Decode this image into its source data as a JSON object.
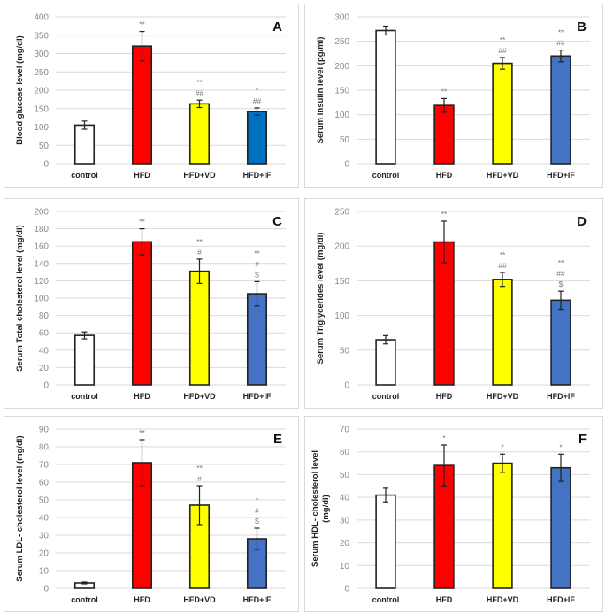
{
  "chart_data": [
    {
      "panel_label": "A",
      "type": "bar",
      "categories": [
        "control",
        "HFD",
        "HFD+VD",
        "HFD+IF"
      ],
      "values": [
        105,
        320,
        163,
        142
      ],
      "errors": [
        11,
        40,
        10,
        10
      ],
      "annotations": [
        [],
        [
          "**"
        ],
        [
          "**",
          "##"
        ],
        [
          "*",
          "##"
        ]
      ],
      "ylabel": [
        "Blood glucose level (mg/dl)"
      ],
      "ylim": [
        0,
        400
      ],
      "ystep": 50,
      "grid": true,
      "colors": [
        "#ffffff",
        "#ff0000",
        "#ffff00",
        "#0070c0"
      ]
    },
    {
      "panel_label": "B",
      "type": "bar",
      "categories": [
        "control",
        "HFD",
        "HFD+VD",
        "HFD+IF"
      ],
      "values": [
        272,
        119,
        205,
        220
      ],
      "errors": [
        9,
        14,
        12,
        12
      ],
      "annotations": [
        [],
        [
          "**"
        ],
        [
          "**",
          "##"
        ],
        [
          "**",
          "##"
        ]
      ],
      "ylabel": [
        "Serum insulin level (pg/ml)"
      ],
      "ylim": [
        0,
        300
      ],
      "ystep": 50,
      "grid": true,
      "colors": [
        "#ffffff",
        "#ff0000",
        "#ffff00",
        "#4472c4"
      ]
    },
    {
      "panel_label": "C",
      "type": "bar",
      "categories": [
        "control",
        "HFD",
        "HFD+VD",
        "HFD+IF"
      ],
      "values": [
        57,
        165,
        131,
        105
      ],
      "errors": [
        4,
        15,
        14,
        14
      ],
      "annotations": [
        [],
        [
          "**"
        ],
        [
          "**",
          "#"
        ],
        [
          "**",
          "#",
          "$"
        ]
      ],
      "ylabel": [
        "Serum Total cholesterol level (mg/dl)"
      ],
      "ylim": [
        0,
        200
      ],
      "ystep": 20,
      "grid": true,
      "colors": [
        "#ffffff",
        "#ff0000",
        "#ffff00",
        "#4472c4"
      ]
    },
    {
      "panel_label": "D",
      "type": "bar",
      "categories": [
        "control",
        "HFD",
        "HFD+VD",
        "HFD+IF"
      ],
      "values": [
        65,
        206,
        152,
        122
      ],
      "errors": [
        6,
        30,
        10,
        13
      ],
      "annotations": [
        [],
        [
          "**"
        ],
        [
          "**",
          "##"
        ],
        [
          "**",
          "##",
          "$"
        ]
      ],
      "ylabel": [
        "Serum Triglycerides level (mg/dl)"
      ],
      "ylim": [
        0,
        250
      ],
      "ystep": 50,
      "grid": true,
      "colors": [
        "#ffffff",
        "#ff0000",
        "#ffff00",
        "#4472c4"
      ]
    },
    {
      "panel_label": "E",
      "type": "bar",
      "categories": [
        "control",
        "HFD",
        "HFD+VD",
        "HFD+IF"
      ],
      "values": [
        3,
        71,
        47,
        28
      ],
      "errors": [
        0.5,
        13,
        11,
        6
      ],
      "annotations": [
        [],
        [
          "**"
        ],
        [
          "**",
          "#"
        ],
        [
          "*",
          "#",
          "$"
        ]
      ],
      "ylabel": [
        "Serum LDL- cholesterol level (mg/dl)"
      ],
      "ylim": [
        0,
        90
      ],
      "ystep": 10,
      "grid": true,
      "colors": [
        "#ffffff",
        "#ff0000",
        "#ffff00",
        "#4472c4"
      ]
    },
    {
      "panel_label": "F",
      "type": "bar",
      "categories": [
        "control",
        "HFD",
        "HFD+VD",
        "HFD+IF"
      ],
      "values": [
        41,
        54,
        55,
        53
      ],
      "errors": [
        3,
        9,
        4,
        6
      ],
      "annotations": [
        [],
        [
          "*"
        ],
        [
          "*"
        ],
        [
          "*"
        ]
      ],
      "ylabel": [
        "Serum HDL- cholesterol level",
        "(mg/dl)"
      ],
      "ylim": [
        0,
        70
      ],
      "ystep": 10,
      "grid": true,
      "colors": [
        "#ffffff",
        "#ff0000",
        "#ffff00",
        "#4472c4"
      ]
    }
  ]
}
